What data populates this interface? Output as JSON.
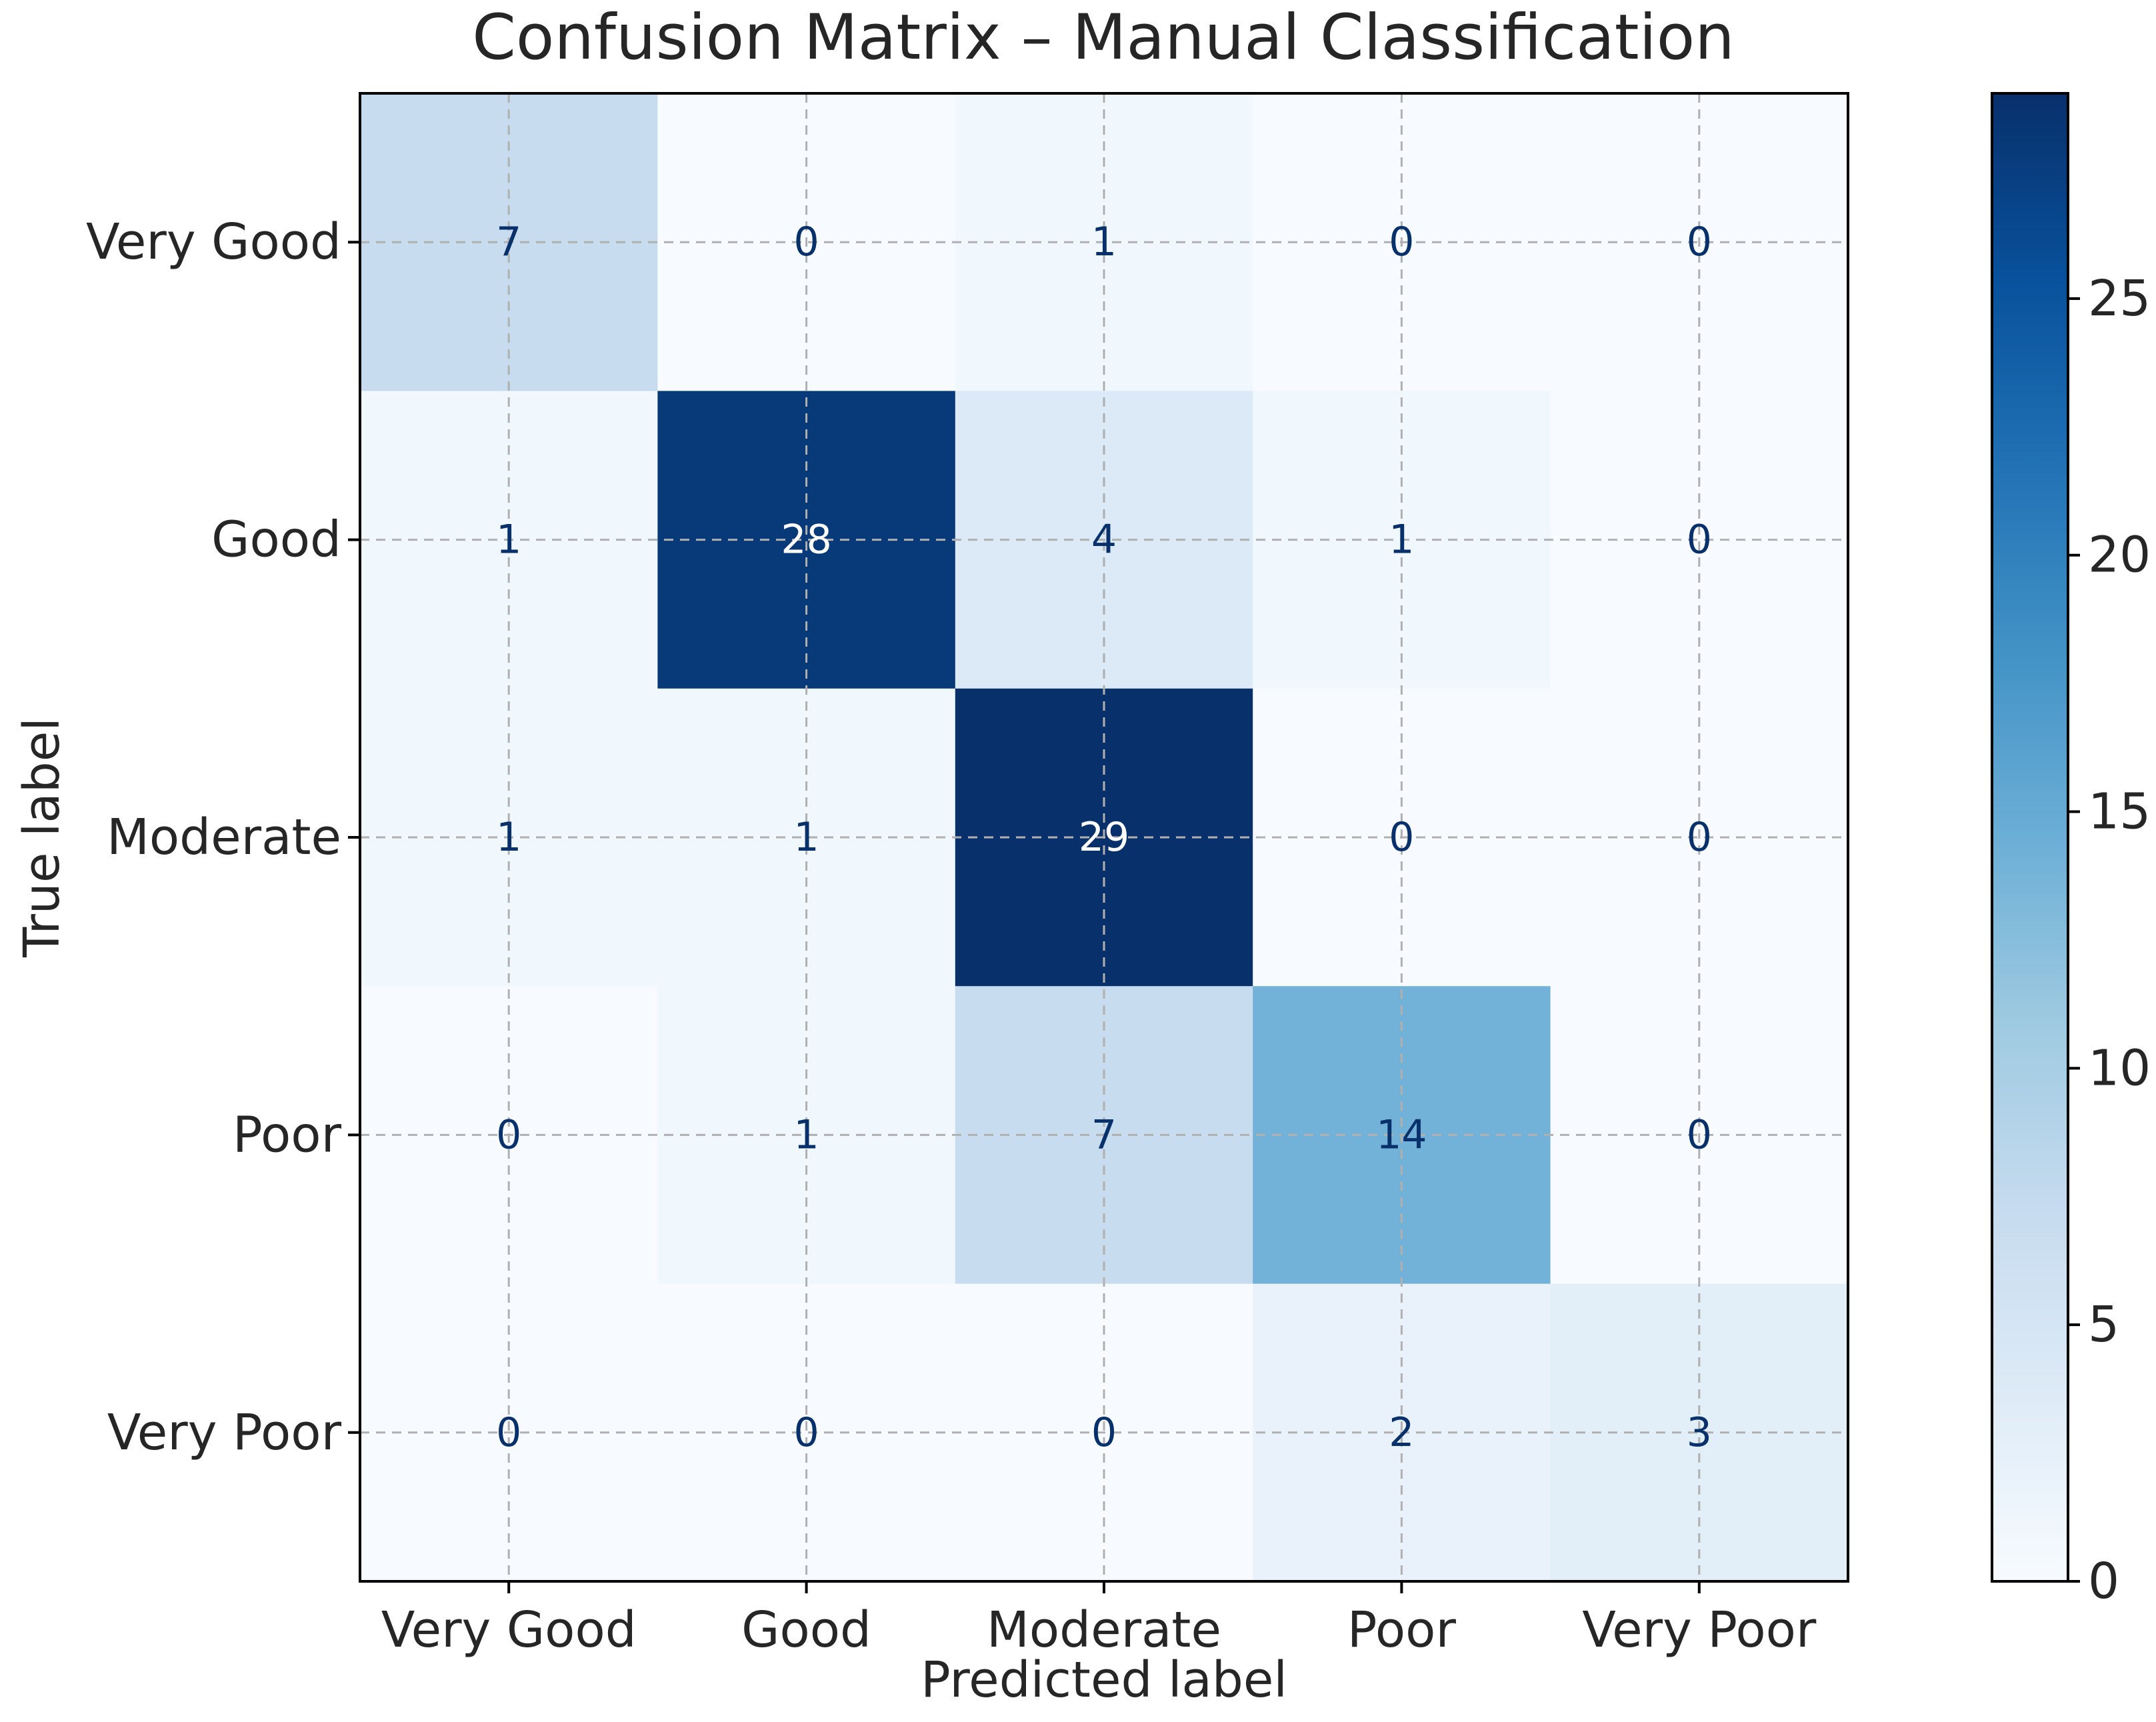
{
  "chart_data": {
    "type": "heatmap",
    "title": "Confusion Matrix – Manual Classification",
    "xlabel": "Predicted label",
    "ylabel": "True label",
    "x_categories": [
      "Very Good",
      "Good",
      "Moderate",
      "Poor",
      "Very Poor"
    ],
    "y_categories": [
      "Very Good",
      "Good",
      "Moderate",
      "Poor",
      "Very Poor"
    ],
    "values": [
      [
        7,
        0,
        1,
        0,
        0
      ],
      [
        1,
        28,
        4,
        1,
        0
      ],
      [
        1,
        1,
        29,
        0,
        0
      ],
      [
        0,
        1,
        7,
        14,
        0
      ],
      [
        0,
        0,
        0,
        2,
        3
      ]
    ],
    "colormap": "Blues",
    "vmin": 0,
    "vmax": 29,
    "colorbar_ticks": [
      0,
      5,
      10,
      15,
      20,
      25
    ],
    "grid": true,
    "colors": {
      "text_dark": "#08306b",
      "text_light": "#ffffff",
      "axis": "#000000",
      "grid": "#b0b0b0"
    }
  }
}
